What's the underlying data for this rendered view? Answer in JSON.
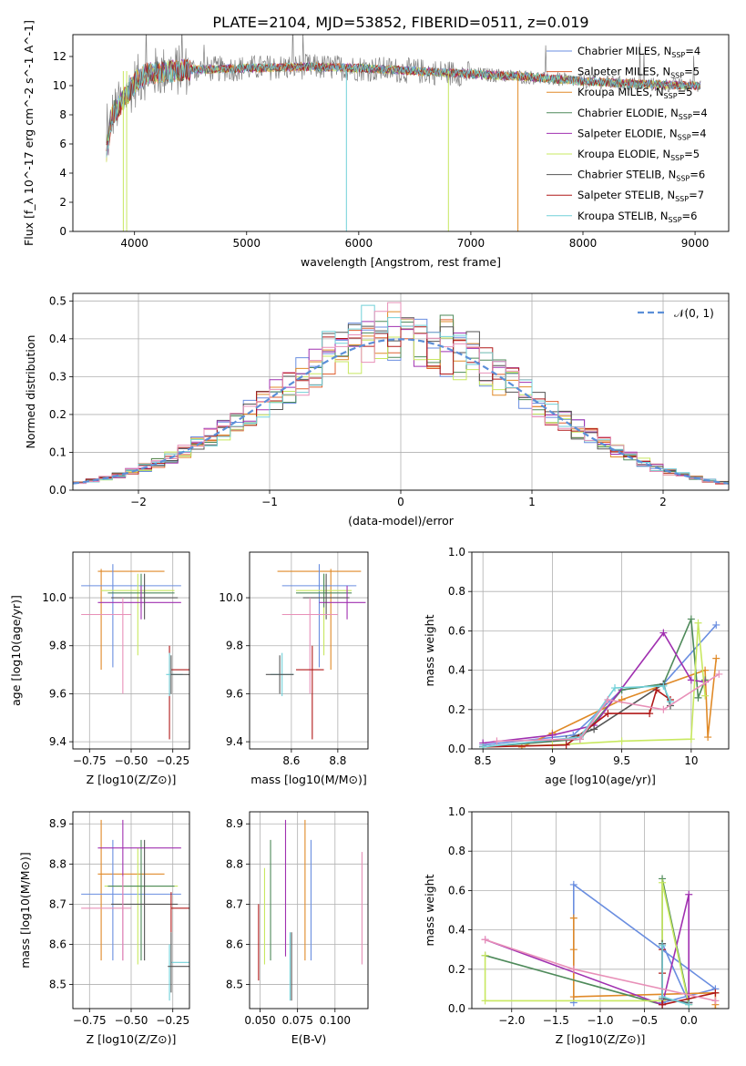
{
  "figure": {
    "title": "PLATE=2104, MJD=53852, FIBERID=0511, z=0.019"
  },
  "colors": {
    "blue": "#6a8ee0",
    "orange": "#e08a28",
    "red_orange": "#e06030",
    "green": "#4e8a5a",
    "purple": "#a030b0",
    "yellowgreen": "#c8e860",
    "darkgray": "#555555",
    "darkred": "#b01818",
    "cyan": "#70d0d8",
    "pink": "#e890b8",
    "gaussian": "#5b8fd8"
  },
  "chart_data": [
    {
      "id": "spectrum",
      "type": "line",
      "title": "PLATE=2104, MJD=53852, FIBERID=0511, z=0.019",
      "xlabel": "wavelength [Angstrom, rest frame]",
      "ylabel": "Flux [f_λ 10^-17 erg cm^-2 s^-1 A^-1]",
      "xlim": [
        3450,
        9300
      ],
      "ylim": [
        0,
        13.5
      ],
      "xticks": [
        4000,
        5000,
        6000,
        7000,
        8000,
        9000
      ],
      "yticks": [
        0,
        2,
        4,
        6,
        8,
        10,
        12
      ],
      "grid": false,
      "legend_position": "upper-right",
      "approx_continuum": {
        "x": [
          3750,
          3800,
          3900,
          4000,
          4100,
          4300,
          4500,
          5000,
          5500,
          6000,
          6500,
          7000,
          7500,
          8000,
          8500,
          9000
        ],
        "y": [
          5.5,
          8.0,
          9.0,
          10.2,
          10.8,
          11.0,
          11.1,
          11.2,
          11.3,
          11.2,
          11.0,
          10.8,
          10.6,
          10.3,
          10.1,
          10.0
        ]
      },
      "legend": [
        {
          "label": "Chabrier MILES, N",
          "sub": "SSP",
          "suffix": "=4",
          "color": "blue"
        },
        {
          "label": "Salpeter MILES, N",
          "sub": "SSP",
          "suffix": "=5",
          "color": "red_orange"
        },
        {
          "label": "Kroupa MILES, N",
          "sub": "SSP",
          "suffix": "=5",
          "color": "orange"
        },
        {
          "label": "Chabrier ELODIE, N",
          "sub": "SSP",
          "suffix": "=4",
          "color": "green"
        },
        {
          "label": "Salpeter ELODIE, N",
          "sub": "SSP",
          "suffix": "=4",
          "color": "purple"
        },
        {
          "label": "Kroupa ELODIE, N",
          "sub": "SSP",
          "suffix": "=5",
          "color": "yellowgreen"
        },
        {
          "label": "Chabrier STELIB, N",
          "sub": "SSP",
          "suffix": "=6",
          "color": "darkgray"
        },
        {
          "label": "Salpeter STELIB, N",
          "sub": "SSP",
          "suffix": "=7",
          "color": "darkred"
        },
        {
          "label": "Kroupa STELIB, N",
          "sub": "SSP",
          "suffix": "=6",
          "color": "cyan"
        }
      ]
    },
    {
      "id": "residuals",
      "type": "step",
      "xlabel": "(data-model)/error",
      "ylabel": "Normed distribution",
      "xlim": [
        -2.5,
        2.5
      ],
      "ylim": [
        0,
        0.52
      ],
      "xticks": [
        -2,
        -1,
        0,
        1,
        2
      ],
      "yticks": [
        0.0,
        0.1,
        0.2,
        0.3,
        0.4,
        0.5
      ],
      "grid": true,
      "legend": [
        {
          "label": "𝒩(0, 1)",
          "color": "gaussian"
        }
      ],
      "bin_width": 0.1,
      "bin_start": -2.5
    },
    {
      "id": "age_vs_Z",
      "type": "errorbar",
      "xlabel": "Z [log10(Z/Z⊙)]",
      "ylabel": "age  [log10(age/yr)]",
      "xlim": [
        -0.85,
        -0.15
      ],
      "ylim": [
        9.37,
        10.19
      ],
      "xticks": [
        -0.75,
        -0.5,
        -0.25
      ],
      "xtick_labels": [
        "−0.75",
        "−0.50",
        "−0.25"
      ],
      "yticks": [
        9.4,
        9.6,
        9.8,
        10.0
      ],
      "grid": true,
      "points": [
        {
          "c": "orange",
          "x": -0.5,
          "xerr": 0.2,
          "y": 10.11,
          "yerr": 0.02,
          "ylo": 9.7,
          "yhi": 10.12,
          "xpos": -0.68
        },
        {
          "c": "blue",
          "x": -0.5,
          "xerr": 0.3,
          "y": 10.05,
          "yerr": 0.02,
          "ylo": 9.71,
          "yhi": 10.14,
          "xpos": -0.61
        },
        {
          "c": "yellowgreen",
          "x": -0.46,
          "xerr": 0.22,
          "y": 10.03,
          "ylo": 9.76,
          "yhi": 10.1,
          "xpos": -0.46
        },
        {
          "c": "green",
          "x": -0.44,
          "xerr": 0.2,
          "y": 10.02,
          "ylo": 9.96,
          "yhi": 10.1,
          "xpos": -0.44
        },
        {
          "c": "purple",
          "x": -0.45,
          "xerr": 0.25,
          "y": 9.98,
          "ylo": 9.91,
          "yhi": 10.05,
          "xpos": -0.44
        },
        {
          "c": "darkgray",
          "x": -0.42,
          "xerr": 0.2,
          "y": 10.0,
          "ylo": 9.91,
          "yhi": 10.1,
          "xpos": -0.42
        },
        {
          "c": "pink",
          "x": -0.65,
          "xerr": 0.15,
          "y": 9.93,
          "ylo": 9.6,
          "yhi": 10.0,
          "xpos": -0.55
        },
        {
          "c": "darkred",
          "x": -0.2,
          "xerr": 0.06,
          "y": 9.7,
          "ylo": 9.41,
          "yhi": 9.8,
          "xpos": -0.27
        },
        {
          "c": "cyan",
          "x": -0.24,
          "xerr": 0.05,
          "y": 9.68,
          "ylo": 9.59,
          "yhi": 9.77,
          "xpos": -0.27
        },
        {
          "c": "darkgray",
          "x": -0.2,
          "xerr": 0.06,
          "y": 9.68,
          "ylo": 9.6,
          "yhi": 9.76,
          "xpos": -0.26
        }
      ]
    },
    {
      "id": "age_vs_mass",
      "type": "errorbar",
      "xlabel": "mass [log10(M/M⊙)]",
      "ylabel": "",
      "xlim": [
        8.42,
        8.93
      ],
      "ylim": [
        9.37,
        10.19
      ],
      "xticks": [
        8.6,
        8.8
      ],
      "yticks": [
        9.4,
        9.6,
        9.8,
        10.0
      ],
      "grid": true,
      "points": [
        {
          "c": "orange",
          "x": 8.72,
          "xerr": 0.18,
          "y": 10.11,
          "ylo": 9.7,
          "yhi": 10.12,
          "xpos": 8.77
        },
        {
          "c": "blue",
          "x": 8.72,
          "xerr": 0.16,
          "y": 10.05,
          "ylo": 9.71,
          "yhi": 10.14,
          "xpos": 8.72
        },
        {
          "c": "yellowgreen",
          "x": 8.74,
          "xerr": 0.12,
          "y": 10.03,
          "ylo": 9.76,
          "yhi": 10.1,
          "xpos": 8.74
        },
        {
          "c": "green",
          "x": 8.74,
          "xerr": 0.12,
          "y": 10.02,
          "ylo": 9.96,
          "yhi": 10.1,
          "xpos": 8.74
        },
        {
          "c": "purple",
          "x": 8.82,
          "xerr": 0.1,
          "y": 9.98,
          "ylo": 9.91,
          "yhi": 10.05,
          "xpos": 8.84
        },
        {
          "c": "darkgray",
          "x": 8.75,
          "xerr": 0.1,
          "y": 10.0,
          "ylo": 9.91,
          "yhi": 10.1,
          "xpos": 8.75
        },
        {
          "c": "pink",
          "x": 8.68,
          "xerr": 0.12,
          "y": 9.93,
          "ylo": 9.6,
          "yhi": 10.0,
          "xpos": 8.68
        },
        {
          "c": "darkred",
          "x": 8.68,
          "xerr": 0.06,
          "y": 9.7,
          "ylo": 9.41,
          "yhi": 9.8,
          "xpos": 8.69
        },
        {
          "c": "cyan",
          "x": 8.56,
          "xerr": 0.05,
          "y": 9.68,
          "ylo": 9.59,
          "yhi": 9.77,
          "xpos": 8.56
        },
        {
          "c": "darkgray",
          "x": 8.55,
          "xerr": 0.06,
          "y": 9.68,
          "ylo": 9.6,
          "yhi": 9.76,
          "xpos": 8.55
        }
      ]
    },
    {
      "id": "mass_weight_vs_age",
      "type": "line",
      "xlabel": "age  [log10(age/yr)]",
      "ylabel": "mass weight",
      "xlim": [
        8.42,
        10.27
      ],
      "ylim": [
        0,
        1.0
      ],
      "xticks": [
        8.5,
        9.0,
        9.5,
        10.0
      ],
      "yticks": [
        0.0,
        0.2,
        0.4,
        0.6,
        0.8,
        1.0
      ],
      "grid": true,
      "series": [
        {
          "c": "blue",
          "x": [
            8.5,
            9.15,
            9.5,
            9.8,
            10.18
          ],
          "y": [
            0.02,
            0.07,
            0.3,
            0.33,
            0.63
          ]
        },
        {
          "c": "orange",
          "x": [
            8.78,
            9.0,
            9.5,
            10.1,
            10.12,
            10.18
          ],
          "y": [
            0.01,
            0.08,
            0.25,
            0.4,
            0.06,
            0.46
          ]
        },
        {
          "c": "green",
          "x": [
            8.5,
            9.2,
            9.5,
            9.8,
            10.0,
            10.05,
            10.1
          ],
          "y": [
            0.01,
            0.05,
            0.3,
            0.33,
            0.66,
            0.26,
            0.35
          ]
        },
        {
          "c": "purple",
          "x": [
            8.5,
            9.0,
            9.3,
            9.8,
            10.0,
            10.1
          ],
          "y": [
            0.03,
            0.07,
            0.12,
            0.59,
            0.35,
            0.34
          ]
        },
        {
          "c": "yellowgreen",
          "x": [
            8.5,
            9.0,
            9.5,
            10.0,
            10.05,
            10.1
          ],
          "y": [
            0.01,
            0.02,
            0.04,
            0.05,
            0.64,
            0.27
          ]
        },
        {
          "c": "darkgray",
          "x": [
            8.5,
            9.1,
            9.3,
            9.8,
            9.85
          ],
          "y": [
            0.01,
            0.05,
            0.1,
            0.33,
            0.22
          ]
        },
        {
          "c": "darkred",
          "x": [
            8.5,
            9.1,
            9.4,
            9.7,
            9.75,
            9.85
          ],
          "y": [
            0.01,
            0.02,
            0.18,
            0.18,
            0.3,
            0.25
          ]
        },
        {
          "c": "cyan",
          "x": [
            8.5,
            9.2,
            9.45,
            9.8,
            9.85
          ],
          "y": [
            0.01,
            0.06,
            0.31,
            0.32,
            0.24
          ]
        },
        {
          "c": "pink",
          "x": [
            8.6,
            9.2,
            9.4,
            9.8,
            10.2
          ],
          "y": [
            0.04,
            0.05,
            0.25,
            0.2,
            0.38
          ]
        }
      ]
    },
    {
      "id": "mass_vs_Z",
      "type": "errorbar",
      "xlabel": "Z [log10(Z/Z⊙)]",
      "ylabel": "mass [log10(M/M⊙)]",
      "xlim": [
        -0.85,
        -0.15
      ],
      "ylim": [
        8.44,
        8.93
      ],
      "xticks": [
        -0.75,
        -0.5,
        -0.25
      ],
      "xtick_labels": [
        "−0.75",
        "−0.50",
        "−0.25"
      ],
      "yticks": [
        8.5,
        8.6,
        8.7,
        8.8,
        8.9
      ],
      "grid": true,
      "points": [
        {
          "c": "orange",
          "x": -0.5,
          "xerr": 0.2,
          "y": 8.775,
          "ylo": 8.56,
          "yhi": 8.91,
          "xpos": -0.68
        },
        {
          "c": "blue",
          "x": -0.5,
          "xerr": 0.3,
          "y": 8.725,
          "ylo": 8.56,
          "yhi": 8.86,
          "xpos": -0.61
        },
        {
          "c": "yellowgreen",
          "x": -0.44,
          "xerr": 0.22,
          "y": 8.745,
          "ylo": 8.55,
          "yhi": 8.84,
          "xpos": -0.46
        },
        {
          "c": "green",
          "x": -0.44,
          "xerr": 0.2,
          "y": 8.745,
          "ylo": 8.56,
          "yhi": 8.86,
          "xpos": -0.44
        },
        {
          "c": "purple",
          "x": -0.45,
          "xerr": 0.25,
          "y": 8.84,
          "ylo": 8.56,
          "yhi": 8.91,
          "xpos": -0.55
        },
        {
          "c": "darkgray",
          "x": -0.42,
          "xerr": 0.2,
          "y": 8.7,
          "ylo": 8.56,
          "yhi": 8.86,
          "xpos": -0.42
        },
        {
          "c": "pink",
          "x": -0.65,
          "xerr": 0.15,
          "y": 8.69,
          "ylo": 8.56,
          "yhi": 8.77,
          "xpos": -0.55
        },
        {
          "c": "darkred",
          "x": -0.2,
          "xerr": 0.06,
          "y": 8.69,
          "ylo": 8.63,
          "yhi": 8.73,
          "xpos": -0.26
        },
        {
          "c": "cyan",
          "x": -0.2,
          "xerr": 0.06,
          "y": 8.555,
          "ylo": 8.46,
          "yhi": 8.6,
          "xpos": -0.27
        },
        {
          "c": "darkgray",
          "x": -0.2,
          "xerr": 0.08,
          "y": 8.545,
          "ylo": 8.48,
          "yhi": 8.63,
          "xpos": -0.26
        }
      ]
    },
    {
      "id": "mass_vs_ebv",
      "type": "errorbar",
      "xlabel": "E(B-V)",
      "ylabel": "",
      "xlim": [
        0.043,
        0.122
      ],
      "ylim": [
        8.44,
        8.93
      ],
      "xticks": [
        0.05,
        0.075,
        0.1
      ],
      "xtick_labels": [
        "0.050",
        "0.075",
        "0.100"
      ],
      "yticks": [
        8.5,
        8.6,
        8.7,
        8.8,
        8.9
      ],
      "grid": true,
      "points": [
        {
          "c": "darkred",
          "x": 0.049,
          "ylo": 8.51,
          "yhi": 8.7
        },
        {
          "c": "yellowgreen",
          "x": 0.053,
          "ylo": 8.55,
          "yhi": 8.79
        },
        {
          "c": "green",
          "x": 0.057,
          "ylo": 8.56,
          "yhi": 8.86
        },
        {
          "c": "purple",
          "x": 0.067,
          "ylo": 8.57,
          "yhi": 8.91
        },
        {
          "c": "cyan",
          "x": 0.07,
          "ylo": 8.46,
          "yhi": 8.63
        },
        {
          "c": "darkgray",
          "x": 0.071,
          "ylo": 8.46,
          "yhi": 8.63
        },
        {
          "c": "orange",
          "x": 0.08,
          "ylo": 8.56,
          "yhi": 8.91
        },
        {
          "c": "blue",
          "x": 0.084,
          "ylo": 8.56,
          "yhi": 8.86
        },
        {
          "c": "pink",
          "x": 0.118,
          "ylo": 8.55,
          "yhi": 8.83
        }
      ]
    },
    {
      "id": "mass_weight_vs_Z",
      "type": "line",
      "xlabel": "Z [log10(Z/Z⊙)]",
      "ylabel": "mass weight",
      "xlim": [
        -2.45,
        0.45
      ],
      "ylim": [
        0,
        1.0
      ],
      "xticks": [
        -2.0,
        -1.5,
        -1.0,
        -0.5,
        0.0
      ],
      "xtick_labels": [
        "−2.0",
        "−1.5",
        "−1.0",
        "−0.5",
        "0.0"
      ],
      "yticks": [
        0.0,
        0.2,
        0.4,
        0.6,
        0.8,
        1.0
      ],
      "grid": true,
      "series": [
        {
          "c": "blue",
          "x": [
            -1.3,
            -1.3,
            0.3,
            -0.3,
            -0.3,
            0.0
          ],
          "y": [
            0.03,
            0.63,
            0.1,
            0.03,
            0.33,
            0.03
          ]
        },
        {
          "c": "orange",
          "x": [
            -1.3,
            -1.3,
            -1.3,
            0.3,
            0.3,
            0.3
          ],
          "y": [
            0.46,
            0.3,
            0.06,
            0.08,
            0.02,
            0.0
          ]
        },
        {
          "c": "green",
          "x": [
            -2.3,
            -0.3,
            -0.3,
            0.0
          ],
          "y": [
            0.27,
            0.02,
            0.66,
            0.03
          ]
        },
        {
          "c": "purple",
          "x": [
            -2.3,
            -0.3,
            0.0,
            0.0
          ],
          "y": [
            0.35,
            0.02,
            0.58,
            0.03
          ]
        },
        {
          "c": "yellowgreen",
          "x": [
            -2.3,
            -2.3,
            -0.3,
            -0.3,
            0.0
          ],
          "y": [
            0.27,
            0.04,
            0.04,
            0.64,
            0.02
          ]
        },
        {
          "c": "darkgray",
          "x": [
            -0.3,
            -0.3,
            0.0
          ],
          "y": [
            0.33,
            0.05,
            0.03
          ]
        },
        {
          "c": "darkred",
          "x": [
            -0.3,
            -0.3,
            -0.3,
            0.3
          ],
          "y": [
            0.3,
            0.18,
            0.02,
            0.08
          ]
        },
        {
          "c": "cyan",
          "x": [
            -0.3,
            -0.3,
            0.0
          ],
          "y": [
            0.32,
            0.06,
            0.02
          ]
        },
        {
          "c": "pink",
          "x": [
            -2.3,
            -1.3,
            0.3
          ],
          "y": [
            0.35,
            0.2,
            0.04
          ]
        }
      ]
    }
  ]
}
